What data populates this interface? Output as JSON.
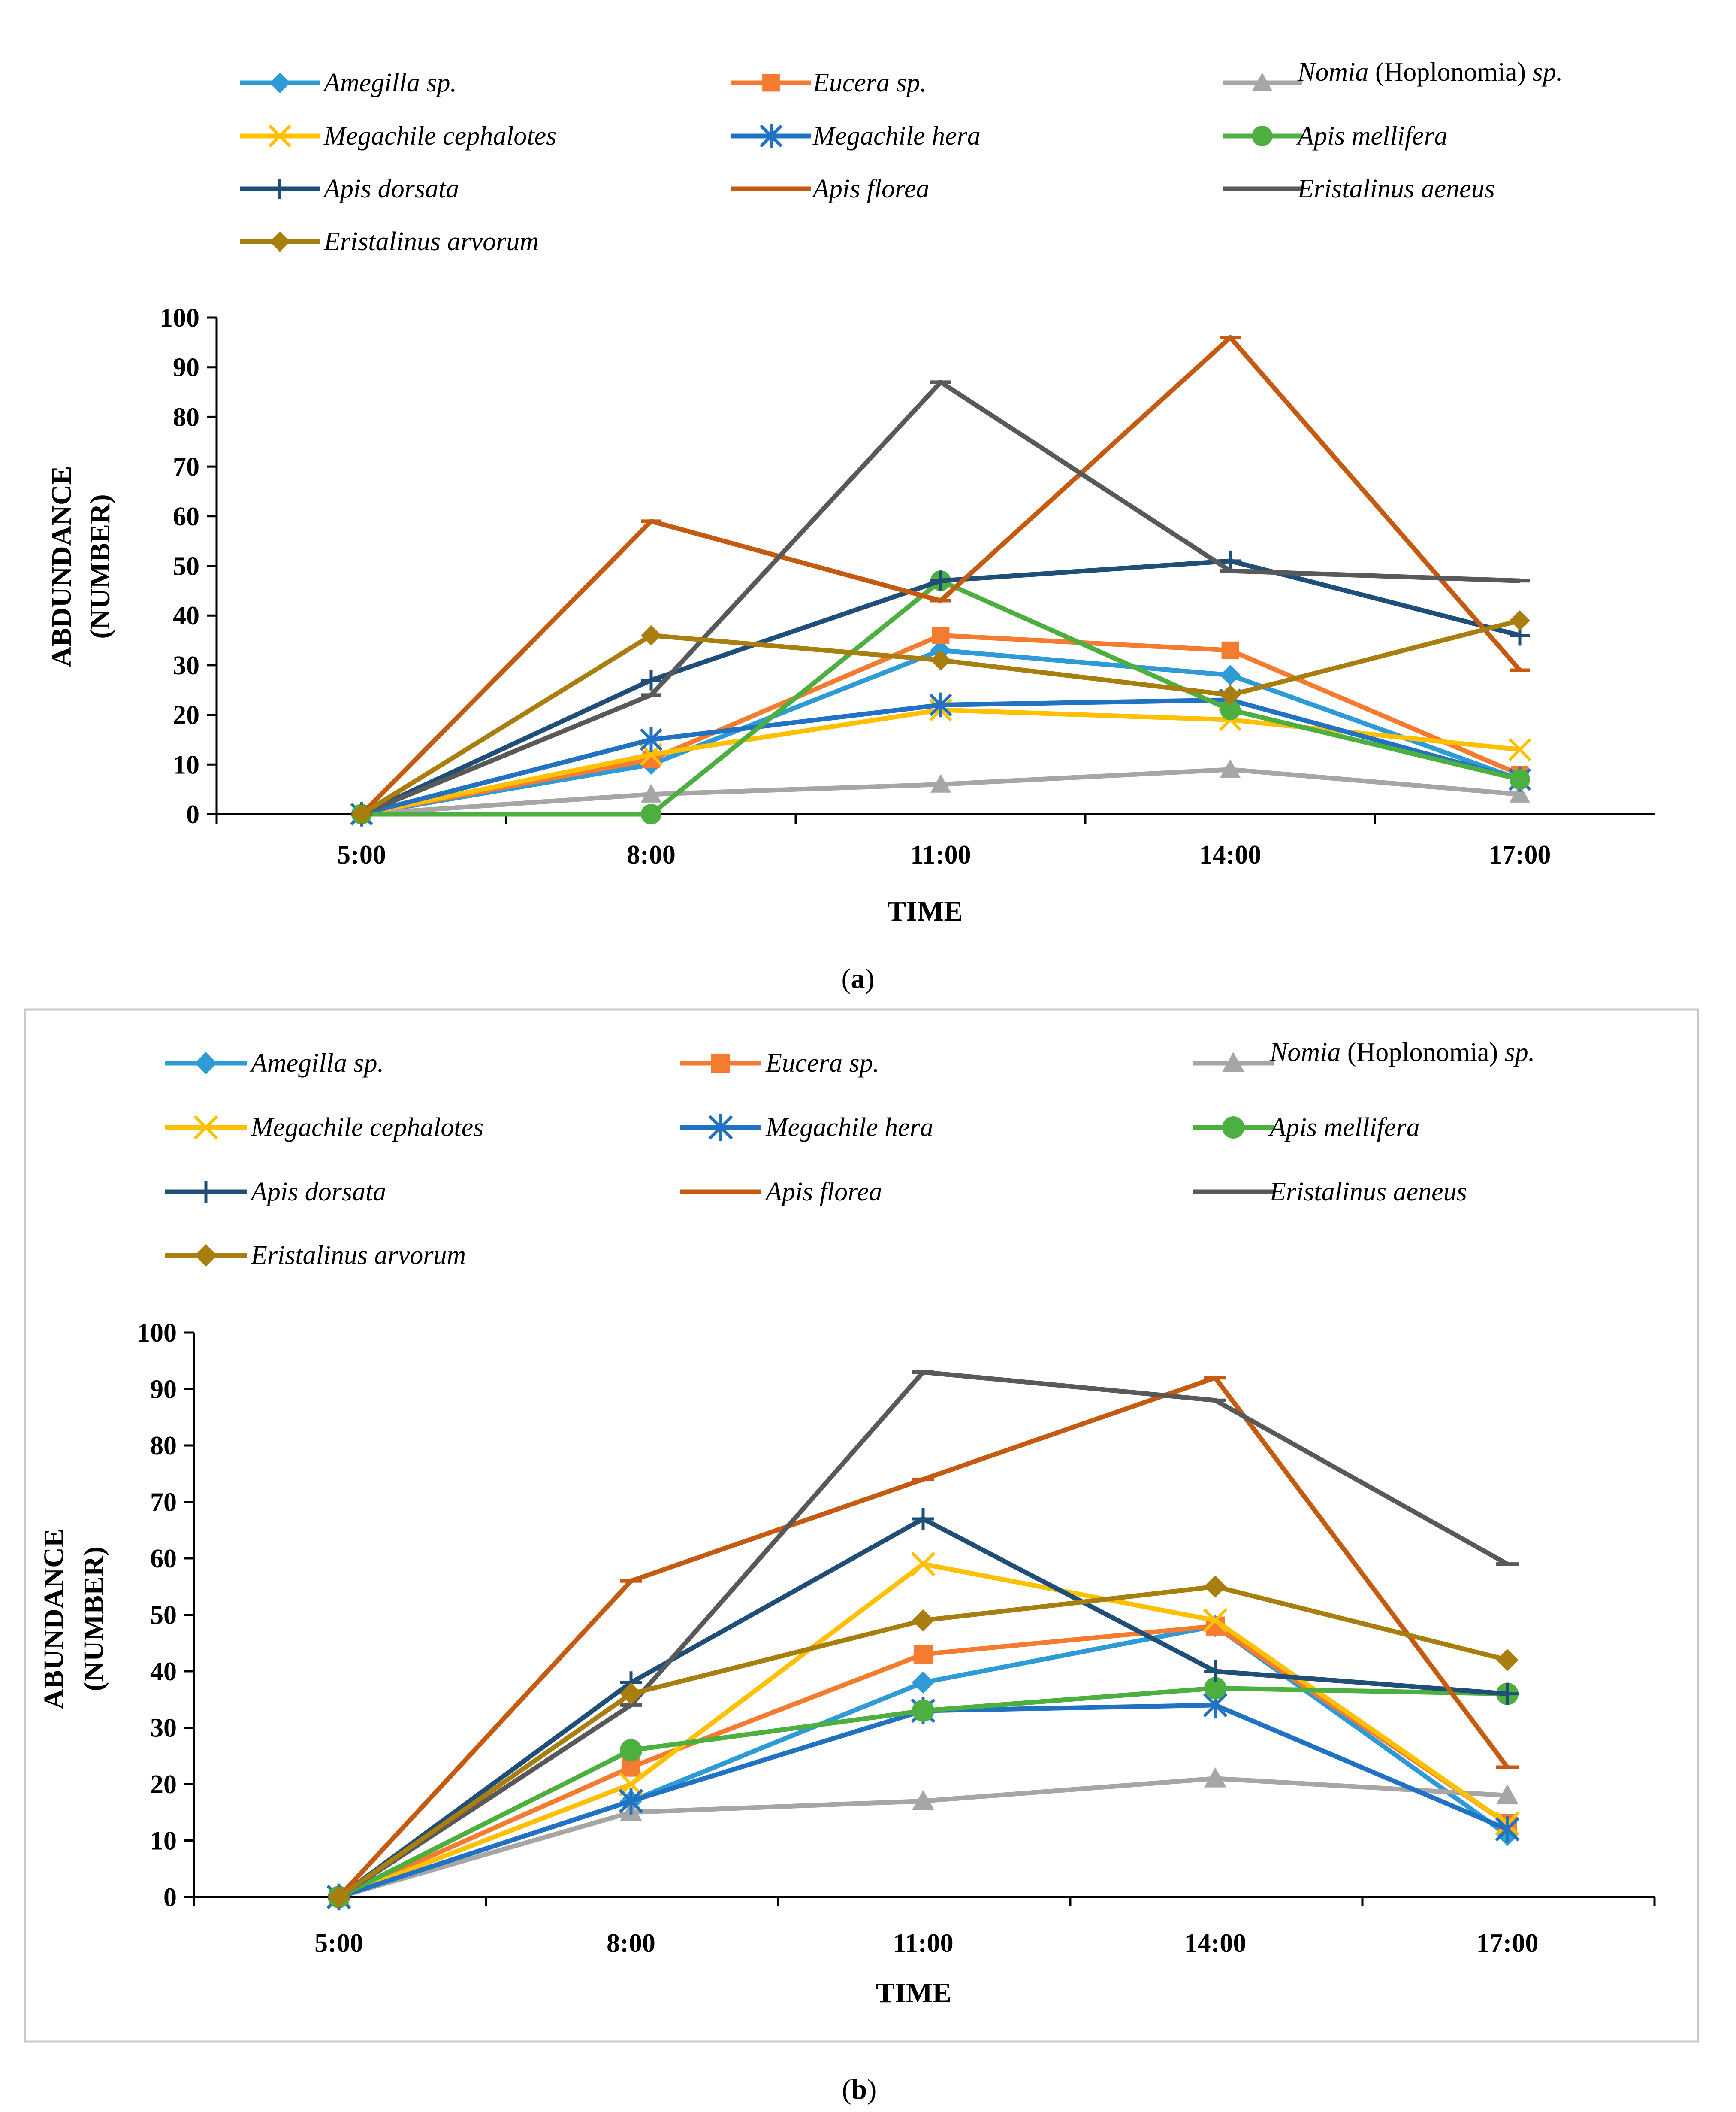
{
  "chart_data": [
    {
      "type": "line",
      "caption_letter": "a",
      "categories": [
        "5:00",
        "8:00",
        "11:00",
        "14:00",
        "17:00"
      ],
      "xlabel": "TIME",
      "ylabel_line1": "ABDUNDANCE",
      "ylabel_line2": "(NUMBER)",
      "ylim": [
        0,
        100
      ],
      "yticks": [
        "0",
        "10",
        "20",
        "30",
        "40",
        "50",
        "60",
        "70",
        "80",
        "90",
        "100"
      ],
      "series": [
        {
          "name": "Amegilla sp.",
          "color": "#2E9BD6",
          "marker": "diamond",
          "values": [
            0,
            10,
            33,
            28,
            7
          ]
        },
        {
          "name": "Eucera sp.",
          "color": "#F47B30",
          "marker": "square",
          "values": [
            0,
            11,
            36,
            33,
            8
          ]
        },
        {
          "name": "Nomia (Hoplonomia) sp.",
          "name_italic": "Nomia",
          "name_upright": "(Hoplonomia)",
          "name_suffix": "sp.",
          "color": "#A6A6A6",
          "marker": "triangle",
          "values": [
            0,
            4,
            6,
            9,
            4
          ]
        },
        {
          "name": "Megachile  cephalotes",
          "color": "#FFC000",
          "marker": "x",
          "values": [
            0,
            12,
            21,
            19,
            13
          ]
        },
        {
          "name": "Megachile hera",
          "color": "#2272C3",
          "marker": "star",
          "values": [
            0,
            15,
            22,
            23,
            7
          ]
        },
        {
          "name": "Apis mellifera",
          "color": "#4CAF3F",
          "marker": "circle",
          "values": [
            0,
            0,
            47,
            21,
            7
          ]
        },
        {
          "name": "Apis dorsata",
          "color": "#1F4E79",
          "marker": "plus",
          "values": [
            0,
            27,
            47,
            51,
            36
          ]
        },
        {
          "name": "Apis florea",
          "color": "#C55A11",
          "marker": "dash",
          "values": [
            0,
            59,
            43,
            96,
            29
          ]
        },
        {
          "name": "Eristalinus aeneus",
          "color": "#595959",
          "marker": "dash",
          "values": [
            0,
            24,
            87,
            49,
            47
          ]
        },
        {
          "name": "Eristalinus arvorum",
          "color": "#A87E0E",
          "marker": "diamond",
          "values": [
            0,
            36,
            31,
            24,
            39
          ]
        }
      ]
    },
    {
      "type": "line",
      "caption_letter": "b",
      "categories": [
        "5:00",
        "8:00",
        "11:00",
        "14:00",
        "17:00"
      ],
      "xlabel": "TIME",
      "ylabel_line1": "ABUNDANCE",
      "ylabel_line2": "(NUMBER)",
      "ylim": [
        0,
        100
      ],
      "yticks": [
        "0",
        "10",
        "20",
        "30",
        "40",
        "50",
        "60",
        "70",
        "80",
        "90",
        "100"
      ],
      "series": [
        {
          "name": "Amegilla sp.",
          "color": "#2E9BD6",
          "marker": "diamond",
          "values": [
            0,
            17,
            38,
            48,
            11
          ]
        },
        {
          "name": "Eucera sp.",
          "color": "#F47B30",
          "marker": "square",
          "values": [
            0,
            23,
            43,
            48,
            13
          ]
        },
        {
          "name": "Nomia (Hoplonomia) sp.",
          "name_italic": "Nomia",
          "name_upright": "(Hoplonomia)",
          "name_suffix": "sp.",
          "color": "#A6A6A6",
          "marker": "triangle",
          "values": [
            0,
            15,
            17,
            21,
            18
          ]
        },
        {
          "name": "Megachile  cephalotes",
          "color": "#FFC000",
          "marker": "x",
          "values": [
            0,
            20,
            59,
            49,
            13
          ]
        },
        {
          "name": "Megachile hera",
          "color": "#2272C3",
          "marker": "star",
          "values": [
            0,
            17,
            33,
            34,
            12
          ]
        },
        {
          "name": "Apis mellifera",
          "color": "#4CAF3F",
          "marker": "circle",
          "values": [
            0,
            26,
            33,
            37,
            36
          ]
        },
        {
          "name": "Apis dorsata",
          "color": "#1F4E79",
          "marker": "plus",
          "values": [
            0,
            38,
            67,
            40,
            36
          ]
        },
        {
          "name": "Apis florea",
          "color": "#C55A11",
          "marker": "dash",
          "values": [
            0,
            56,
            74,
            92,
            23
          ]
        },
        {
          "name": "Eristalinus aeneus",
          "color": "#595959",
          "marker": "dash",
          "values": [
            0,
            34,
            93,
            88,
            59
          ]
        },
        {
          "name": "Eristalinus arvorum",
          "color": "#A87E0E",
          "marker": "diamond",
          "values": [
            0,
            36,
            49,
            55,
            42
          ]
        }
      ]
    }
  ]
}
